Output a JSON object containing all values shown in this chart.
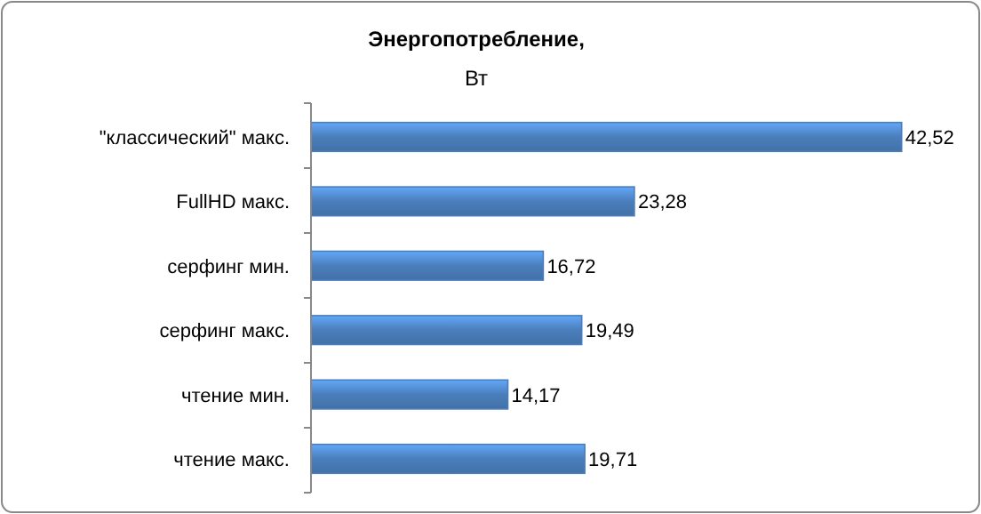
{
  "chart_data": {
    "type": "bar",
    "orientation": "horizontal",
    "title": "Энергопотребление,",
    "subtitle": "Вт",
    "categories": [
      "\"классический\" макс.",
      "FullHD макс.",
      "серфинг мин.",
      "серфинг макс.",
      "чтение мин.",
      "чтение макс."
    ],
    "values": [
      42.52,
      23.28,
      16.72,
      19.49,
      14.17,
      19.71
    ],
    "value_labels": [
      "42,52",
      "23,28",
      "16,72",
      "19,49",
      "14,17",
      "19,71"
    ],
    "color": "#4a7ebb"
  }
}
